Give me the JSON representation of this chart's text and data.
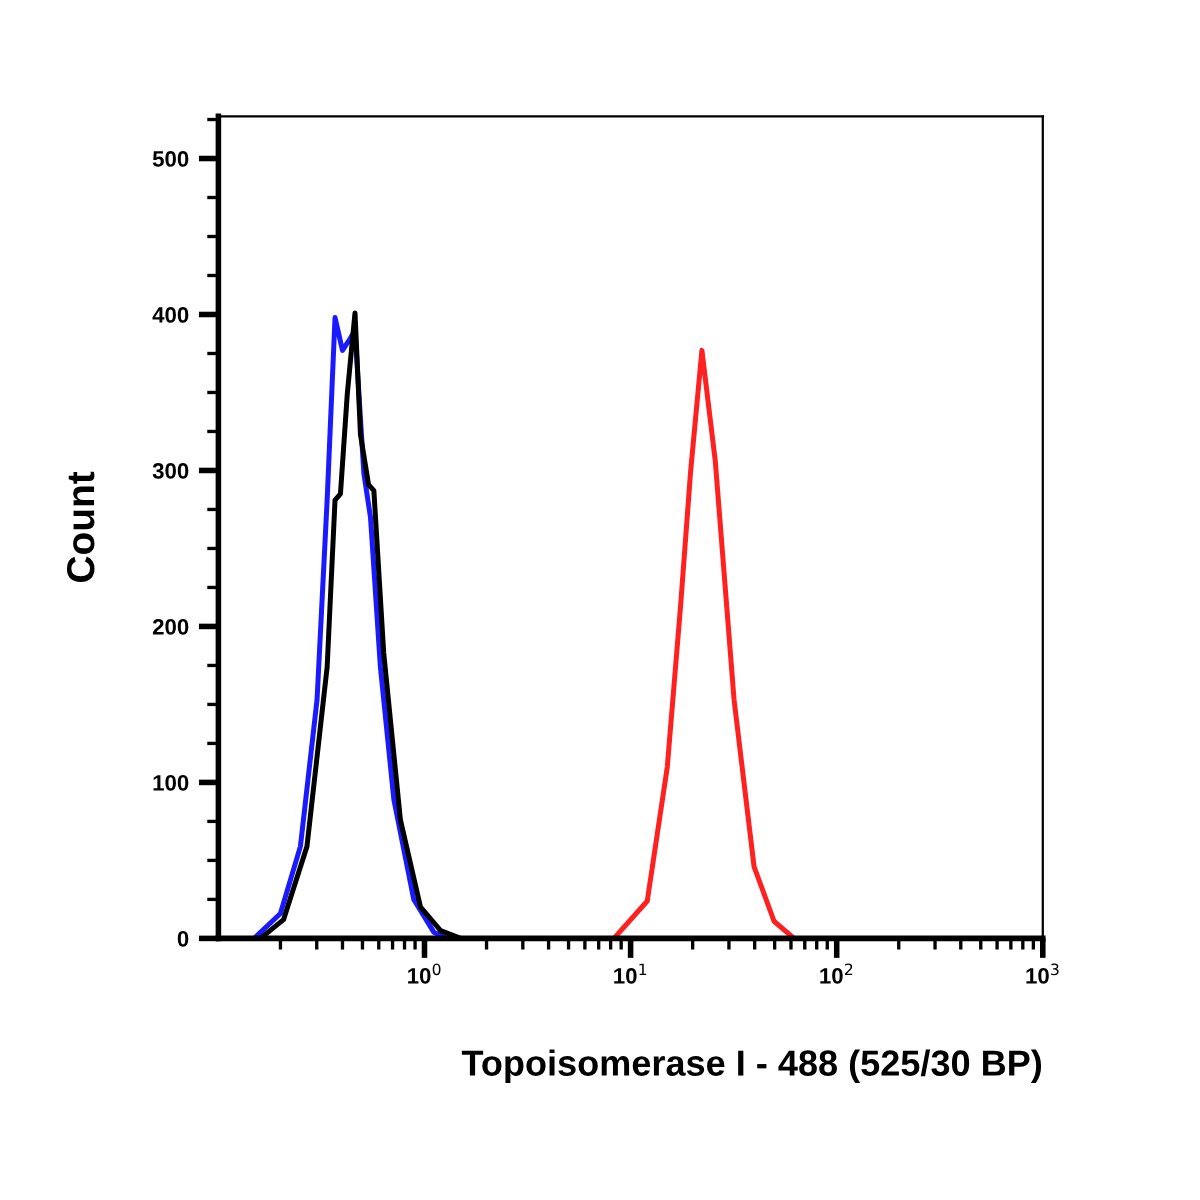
{
  "chart_data": {
    "type": "line",
    "xlabel": "Topoisomerase I - 488 (525/30 BP)",
    "ylabel": "Count",
    "log": "x",
    "grid": false,
    "marker": "none",
    "line_style": "solid",
    "xlim": [
      0.1,
      1000
    ],
    "ylim": [
      0,
      527
    ],
    "xticks": [
      {
        "value": 1,
        "label": "10$^{0}$"
      },
      {
        "value": 10,
        "label": "10$^{1}$"
      },
      {
        "value": 100,
        "label": "10$^{2}$"
      },
      {
        "value": 1000,
        "label": "10$^{3}$"
      }
    ],
    "yticks": [
      0,
      100,
      200,
      300,
      400,
      500
    ],
    "series": [
      {
        "color": "#ff2020",
        "x": [
          0.1,
          8.3,
          12.05,
          15.07,
          17.5,
          19.54,
          22.18,
          25.76,
          31.77,
          39.72,
          49.66,
          62.09,
          1000
        ],
        "values": [
          0,
          0,
          24,
          110,
          214,
          299,
          377,
          306,
          153,
          46,
          11,
          0,
          0
        ]
      },
      {
        "color": "#1a1aff",
        "x": [
          0.1,
          0.149,
          0.2,
          0.25,
          0.301,
          0.337,
          0.368,
          0.4,
          0.438,
          0.46,
          0.508,
          0.547,
          0.611,
          0.71,
          0.887,
          1.109,
          1.288,
          1000
        ],
        "values": [
          0,
          0,
          16,
          59,
          153,
          281,
          398,
          377,
          385,
          390,
          298,
          270,
          174,
          89,
          25,
          4,
          0,
          0
        ]
      },
      {
        "color": "#000000",
        "x": [
          0.1,
          0.16,
          0.207,
          0.269,
          0.337,
          0.368,
          0.391,
          0.422,
          0.46,
          0.489,
          0.535,
          0.568,
          0.634,
          0.764,
          0.957,
          1.197,
          1.496,
          1000
        ],
        "values": [
          0,
          0,
          12,
          59,
          174,
          281,
          285,
          349,
          401,
          323,
          291,
          287,
          183,
          76,
          20,
          5,
          0,
          0
        ]
      }
    ]
  }
}
